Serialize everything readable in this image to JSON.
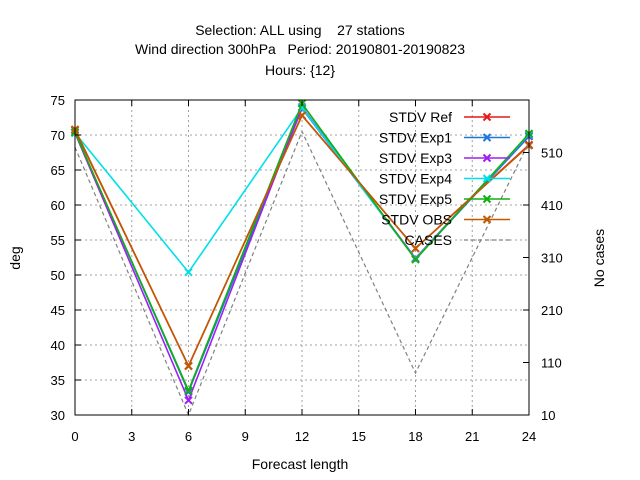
{
  "chart_data": {
    "type": "line",
    "title_lines": [
      "Selection: ALL using    27 stations",
      "Wind direction 300hPa   Period: 20190801-20190823",
      "Hours: {12}"
    ],
    "xlabel": "Forecast length",
    "ylabel": "deg",
    "y2label": "No cases",
    "x": [
      0,
      6,
      12,
      18,
      24
    ],
    "xticks": [
      0,
      3,
      6,
      9,
      12,
      15,
      18,
      21,
      24
    ],
    "xlim": [
      0,
      24
    ],
    "ylim": [
      30,
      75
    ],
    "yticks": [
      30,
      35,
      40,
      45,
      50,
      55,
      60,
      65,
      70,
      75
    ],
    "y2lim": [
      10,
      610
    ],
    "y2ticks": [
      10,
      110,
      210,
      310,
      410,
      510
    ],
    "grid": true,
    "legend_position": "top-right",
    "series": [
      {
        "name": "STDV Ref",
        "color": "#e41a1c",
        "marker": "x",
        "axis": "y",
        "values": [
          70.7,
          37.0,
          72.8,
          53.8,
          68.6
        ]
      },
      {
        "name": "STDV Exp1",
        "color": "#1e78dc",
        "marker": "x",
        "axis": "y",
        "values": [
          70.4,
          33.3,
          73.8,
          52.3,
          69.8
        ]
      },
      {
        "name": "STDV Exp3",
        "color": "#a020f0",
        "marker": "x",
        "axis": "y",
        "values": [
          70.3,
          32.1,
          74.0,
          52.4,
          70.0
        ]
      },
      {
        "name": "STDV Exp4",
        "color": "#00e0e8",
        "marker": "x",
        "axis": "y",
        "values": [
          70.3,
          50.4,
          73.9,
          52.3,
          70.1
        ]
      },
      {
        "name": "STDV Exp5",
        "color": "#10b010",
        "marker": "x",
        "axis": "y",
        "values": [
          70.4,
          33.5,
          74.5,
          52.2,
          70.2
        ]
      },
      {
        "name": "STDV OBS",
        "color": "#c05a00",
        "marker": "x",
        "axis": "y",
        "values": [
          70.8,
          37.0,
          72.8,
          53.8,
          68.5
        ]
      },
      {
        "name": "CASES",
        "color": "#808080",
        "marker": "",
        "axis": "y2",
        "dashed": true,
        "values": [
          520,
          10,
          550,
          90,
          530
        ]
      }
    ]
  }
}
